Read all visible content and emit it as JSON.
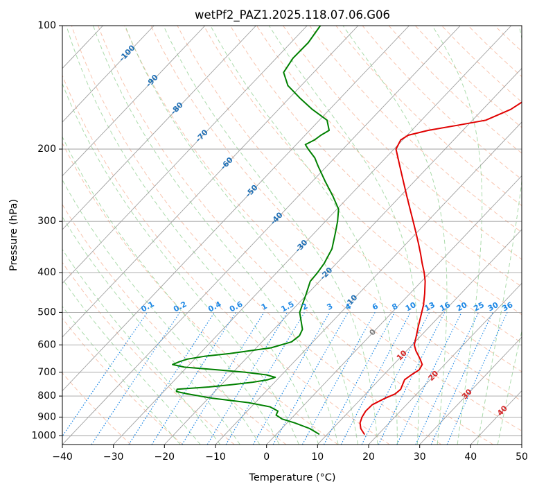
{
  "chart_data": {
    "type": "line",
    "subtype": "skew-t log-p diagram",
    "title": "wetPf2_PAZ1.2025.118.07.06.G06",
    "xlabel": "Temperature (°C)",
    "ylabel": "Pressure (hPa)",
    "xlim": [
      -40,
      50
    ],
    "ylim": [
      1050,
      100
    ],
    "y_scale": "log",
    "grid": true,
    "x_ticks": [
      -40,
      -30,
      -20,
      -10,
      0,
      10,
      20,
      30,
      40,
      50
    ],
    "x_tick_labels": [
      "−40",
      "−30",
      "−20",
      "−10",
      "0",
      "10",
      "20",
      "30",
      "40",
      "50"
    ],
    "y_ticks": [
      100,
      200,
      300,
      400,
      500,
      600,
      700,
      800,
      900,
      1000
    ],
    "y_tick_labels": [
      "100",
      "200",
      "300",
      "400",
      "500",
      "600",
      "700",
      "800",
      "900",
      "1000"
    ],
    "series": [
      {
        "color": "#e00000",
        "p": [
          990,
          960,
          930,
          900,
          870,
          840,
          810,
          790,
          770,
          750,
          730,
          710,
          690,
          670,
          650,
          620,
          600,
          570,
          540,
          510,
          480,
          450,
          420,
          400,
          380,
          360,
          340,
          320,
          300,
          280,
          260,
          240,
          220,
          200,
          190,
          185,
          180,
          175,
          170,
          160,
          150,
          140,
          130,
          120,
          110,
          100
        ],
        "t": [
          17.2,
          15.5,
          14.3,
          13.6,
          13.2,
          13.3,
          14.6,
          15.8,
          16.0,
          15.5,
          15.0,
          15.4,
          16.0,
          15.6,
          14.2,
          11.8,
          10.4,
          9.1,
          7.7,
          6.3,
          4.8,
          2.9,
          0.7,
          -1.1,
          -3.2,
          -5.3,
          -7.6,
          -10.1,
          -12.8,
          -15.7,
          -18.8,
          -22.1,
          -25.7,
          -29.6,
          -30.4,
          -29.8,
          -26.8,
          -22.0,
          -17.4,
          -14.5,
          -13.2,
          -12.2,
          -10.2,
          -9.3,
          -8.6,
          -10.3
        ]
      },
      {
        "color": "#008000",
        "p": [
          990,
          960,
          930,
          910,
          890,
          870,
          850,
          830,
          810,
          790,
          780,
          770,
          760,
          750,
          740,
          730,
          720,
          710,
          700,
          690,
          680,
          670,
          660,
          650,
          640,
          630,
          610,
          590,
          570,
          550,
          500,
          450,
          420,
          400,
          380,
          350,
          320,
          300,
          280,
          260,
          240,
          220,
          210,
          200,
          195,
          190,
          185,
          180,
          170,
          160,
          150,
          140,
          130,
          120,
          110,
          100
        ],
        "t": [
          8.3,
          5.5,
          1.5,
          -1.7,
          -3.6,
          -4.0,
          -6.3,
          -11.3,
          -19.2,
          -25.0,
          -27.5,
          -27.8,
          -22.0,
          -17.9,
          -14.3,
          -11.8,
          -10.8,
          -13.0,
          -17.6,
          -23.6,
          -30.5,
          -33.3,
          -32.5,
          -31.4,
          -28.6,
          -24.1,
          -17.1,
          -14.2,
          -13.8,
          -14.4,
          -18.1,
          -20.3,
          -21.8,
          -22.0,
          -22.4,
          -23.6,
          -25.9,
          -27.6,
          -29.7,
          -33.3,
          -37.4,
          -41.7,
          -43.9,
          -46.8,
          -48.2,
          -47.3,
          -46.9,
          -46.2,
          -48.5,
          -53.4,
          -58.0,
          -62.6,
          -65.9,
          -66.7,
          -66.6,
          -67.4
        ]
      }
    ],
    "isotherm_labels": [
      "-100",
      "-90",
      "-80",
      "-70",
      "-60",
      "-50",
      "-40",
      "-30",
      "-20",
      "-10",
      "0",
      "10",
      "20",
      "30",
      "40"
    ],
    "mixing_ratio_labels": [
      "0.1",
      "0.2",
      "0.4",
      "0.6",
      "1",
      "1.5",
      "2",
      "3",
      "4",
      "6",
      "8",
      "10",
      "13",
      "16",
      "20",
      "25",
      "30",
      "36"
    ],
    "colors": {
      "temperature": "#e00000",
      "dewpoint": "#008000",
      "isotherm_cold_label": "#1f6fb5",
      "isotherm_warm_label": "#d62728",
      "isotherm_zero_label": "#808080",
      "mixing_ratio": "#1e88e5",
      "dry_adiabat": "#f4a582",
      "moist_adiabat": "#8fcf8f",
      "skewed_isotherm": "#a0a0a0"
    }
  }
}
